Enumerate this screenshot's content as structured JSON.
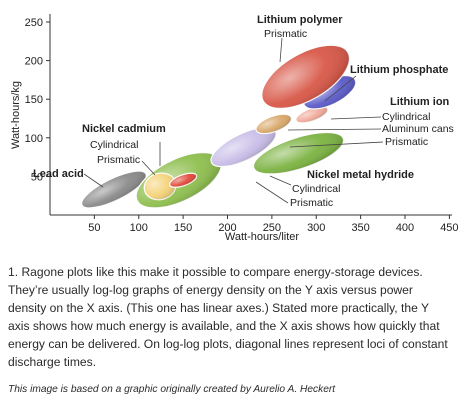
{
  "chart_data": {
    "type": "scatter",
    "xlabel": "Watt-hours/liter",
    "ylabel": "Watt-hours/kg",
    "xlim": [
      0,
      450
    ],
    "ylim": [
      0,
      260
    ],
    "x_ticks": [
      50,
      100,
      150,
      200,
      250,
      300,
      350,
      400,
      450
    ],
    "y_ticks": [
      50,
      100,
      150,
      200,
      250
    ],
    "grid": false,
    "regions": [
      {
        "key": "lead-acid",
        "cx": 72,
        "cy": 33,
        "rx": 40,
        "ry": 14,
        "angle": 26,
        "color": "#8a8a8a"
      },
      {
        "key": "nicd-cylindrical",
        "cx": 145,
        "cy": 45,
        "rx": 52,
        "ry": 27,
        "angle": 26,
        "color": "#8fbf4f"
      },
      {
        "key": "nicd-prismatic",
        "cx": 124,
        "cy": 37,
        "rx": 18,
        "ry": 17,
        "angle": 15,
        "color": "#f5d37a"
      },
      {
        "key": "nicd-small",
        "cx": 150,
        "cy": 45,
        "rx": 16,
        "ry": 7,
        "angle": 20,
        "color": "#e04838"
      },
      {
        "key": "violet-band",
        "cx": 218,
        "cy": 88,
        "rx": 40,
        "ry": 17,
        "angle": 26,
        "color": "#c8bde8"
      },
      {
        "key": "nimh",
        "cx": 280,
        "cy": 80,
        "rx": 53,
        "ry": 20,
        "angle": 18,
        "color": "#7cb342"
      },
      {
        "key": "li-ion-cylindrical",
        "cx": 252,
        "cy": 118,
        "rx": 21,
        "ry": 10,
        "angle": 20,
        "color": "#d9a86a"
      },
      {
        "key": "li-ion-prismatic",
        "cx": 295,
        "cy": 130,
        "rx": 19,
        "ry": 8,
        "angle": 20,
        "color": "#f0a898"
      },
      {
        "key": "lithium-phosphate",
        "cx": 315,
        "cy": 159,
        "rx": 32,
        "ry": 16,
        "angle": 26,
        "color": "#5a5ac8"
      },
      {
        "key": "lithium-polymer",
        "cx": 288,
        "cy": 179,
        "rx": 55,
        "ry": 30,
        "angle": 30,
        "color": "#d85848"
      }
    ],
    "labels": {
      "lithium_polymer": "Lithium polymer",
      "lithium_polymer_prismatic": "Prismatic",
      "lithium_phosphate": "Lithium phosphate",
      "lithium_ion": "Lithium ion",
      "lithium_ion_cylindrical": "Cylindrical",
      "lithium_ion_aluminum_cans": "Aluminum cans",
      "lithium_ion_prismatic": "Prismatic",
      "nickel_cadmium": "Nickel cadmium",
      "nickel_cadmium_cylindrical": "Cylindrical",
      "nickel_cadmium_prismatic": "Prismatic",
      "lead_acid": "Lead acid",
      "nickel_metal_hydride": "Nickel metal hydride",
      "nimh_cylindrical": "Cylindrical",
      "nimh_prismatic": "Prismatic"
    }
  },
  "caption": "1. Ragone plots like this make it possible to compare energy-storage devices. They’re usually log-log graphs of energy density on the Y axis versus power density on the X axis. (This one has linear axes.) Stated more practically, the Y axis shows how much energy is available, and the X axis shows how quickly that energy can be delivered. On log-log plots, diagonal lines represent loci of constant discharge times.",
  "credit": "This image is based on a graphic originally created by Aurelio A. Heckert"
}
